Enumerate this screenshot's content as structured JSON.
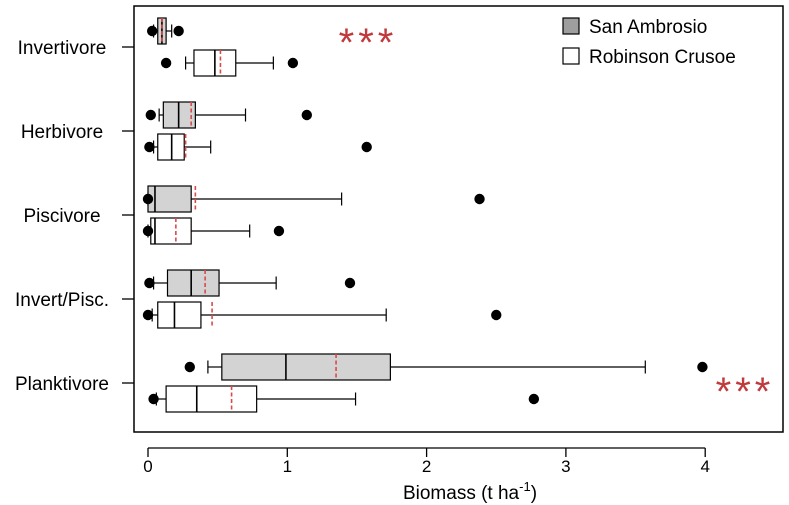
{
  "chart_data": {
    "type": "boxplot",
    "orientation": "horizontal",
    "title": "",
    "xlabel": "Biomass (t ha",
    "xlabel_superscript": "-1",
    "xlabel_suffix": ")",
    "xlim": [
      -0.1,
      4.5
    ],
    "xticks": [
      0,
      1,
      2,
      3,
      4
    ],
    "grid": false,
    "legend": {
      "position": "top-right",
      "entries": [
        {
          "name": "San Ambrosio",
          "fill": "#d3d3d3"
        },
        {
          "name": "Robinson Crusoe",
          "fill": "#ffffff"
        }
      ]
    },
    "mean_line_color": "#d94a4a",
    "significance_color": "#c0393b",
    "categories": [
      {
        "label": "Invertivore",
        "significance": "***",
        "boxes": [
          {
            "series": "San Ambrosio",
            "whisker_low": 0.04,
            "q1": 0.07,
            "median": 0.1,
            "q3": 0.13,
            "whisker_high": 0.17,
            "mean": 0.1,
            "outliers": [
              0.03,
              0.22
            ]
          },
          {
            "series": "Robinson Crusoe",
            "whisker_low": 0.27,
            "q1": 0.33,
            "median": 0.48,
            "q3": 0.63,
            "whisker_high": 0.9,
            "mean": 0.52,
            "outliers": [
              0.13,
              1.04
            ]
          }
        ]
      },
      {
        "label": "Herbivore",
        "significance": "",
        "boxes": [
          {
            "series": "San Ambrosio",
            "whisker_low": 0.08,
            "q1": 0.11,
            "median": 0.22,
            "q3": 0.34,
            "whisker_high": 0.7,
            "mean": 0.31,
            "outliers": [
              0.02,
              1.14
            ]
          },
          {
            "series": "Robinson Crusoe",
            "whisker_low": 0.04,
            "q1": 0.07,
            "median": 0.17,
            "q3": 0.26,
            "whisker_high": 0.45,
            "mean": 0.27,
            "outliers": [
              0.01,
              1.57
            ]
          }
        ]
      },
      {
        "label": "Piscivore",
        "significance": "",
        "boxes": [
          {
            "series": "San Ambrosio",
            "whisker_low": 0.0,
            "q1": 0.0,
            "median": 0.05,
            "q3": 0.31,
            "whisker_high": 1.39,
            "mean": 0.34,
            "outliers": [
              0.0,
              2.38
            ]
          },
          {
            "series": "Robinson Crusoe",
            "whisker_low": 0.0,
            "q1": 0.02,
            "median": 0.05,
            "q3": 0.31,
            "whisker_high": 0.73,
            "mean": 0.2,
            "outliers": [
              0.0,
              0.94
            ]
          }
        ]
      },
      {
        "label": "Invert/Pisc.",
        "significance": "",
        "boxes": [
          {
            "series": "San Ambrosio",
            "whisker_low": 0.04,
            "q1": 0.14,
            "median": 0.31,
            "q3": 0.51,
            "whisker_high": 0.92,
            "mean": 0.41,
            "outliers": [
              0.01,
              1.45
            ]
          },
          {
            "series": "Robinson Crusoe",
            "whisker_low": 0.03,
            "q1": 0.07,
            "median": 0.19,
            "q3": 0.38,
            "whisker_high": 1.71,
            "mean": 0.46,
            "outliers": [
              0.0,
              2.5
            ]
          }
        ]
      },
      {
        "label": "Planktivore",
        "significance": "***",
        "boxes": [
          {
            "series": "San Ambrosio",
            "whisker_low": 0.43,
            "q1": 0.53,
            "median": 0.99,
            "q3": 1.74,
            "whisker_high": 3.57,
            "mean": 1.35,
            "outliers": [
              0.3,
              3.98
            ]
          },
          {
            "series": "Robinson Crusoe",
            "whisker_low": 0.06,
            "q1": 0.13,
            "median": 0.35,
            "q3": 0.78,
            "whisker_high": 1.49,
            "mean": 0.6,
            "outliers": [
              0.04,
              2.77
            ]
          }
        ]
      }
    ]
  }
}
